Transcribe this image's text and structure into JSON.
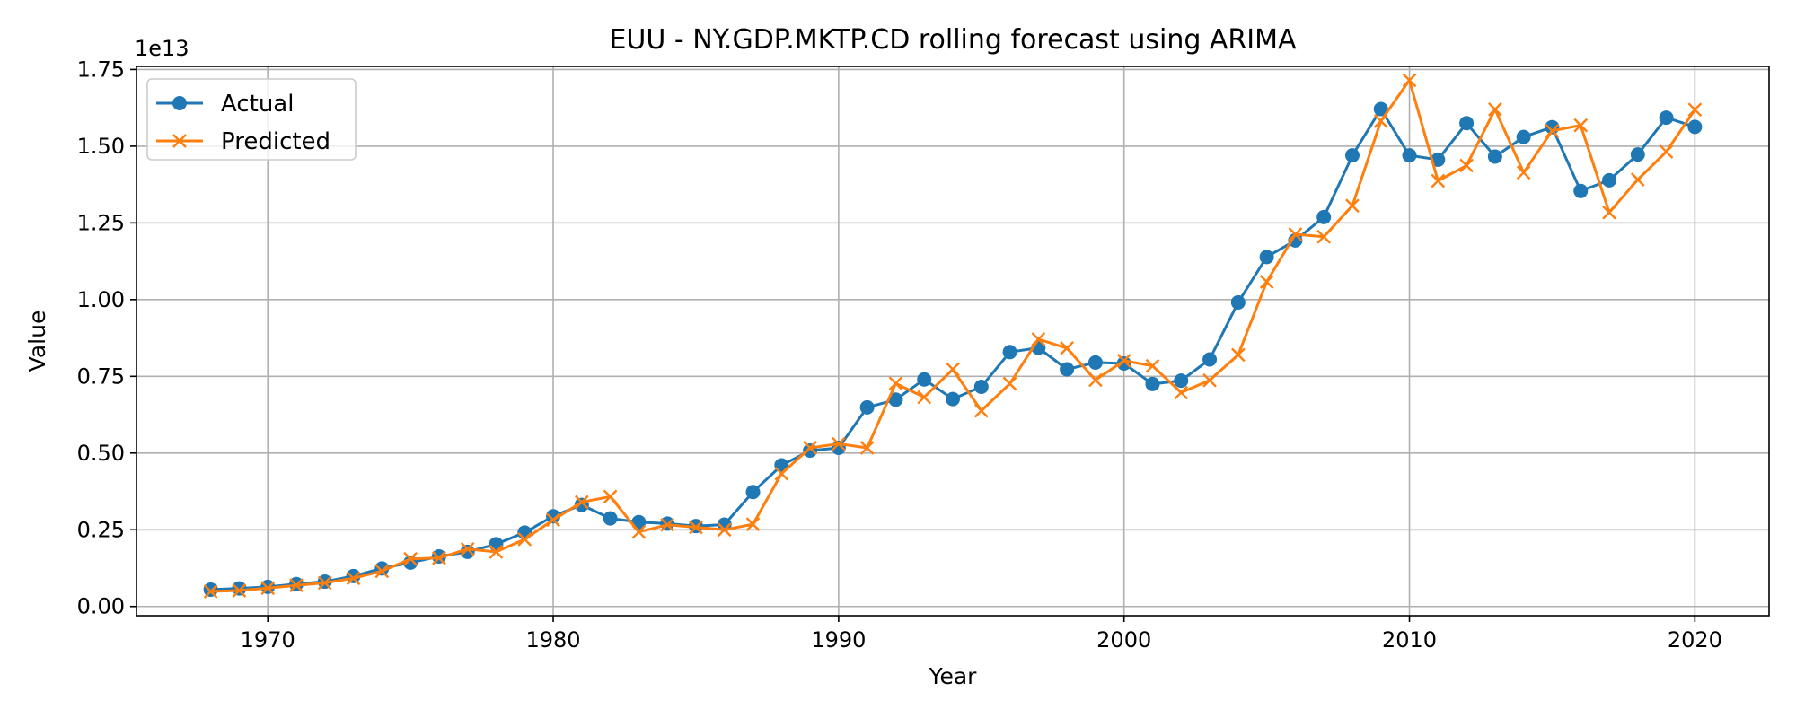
{
  "chart_data": {
    "type": "line",
    "title": "EUU - NY.GDP.MKTP.CD rolling forecast using ARIMA",
    "xlabel": "Year",
    "ylabel": "Value",
    "y_offset_label": "1e13",
    "xlim": [
      1965.4,
      2022.6
    ],
    "ylim": [
      -0.03,
      1.76
    ],
    "x_ticks": [
      1970,
      1980,
      1990,
      2000,
      2010,
      2020
    ],
    "y_ticks": [
      "0.00",
      "0.25",
      "0.50",
      "0.75",
      "1.00",
      "1.25",
      "1.50",
      "1.75"
    ],
    "y_scale": 10000000000000.0,
    "grid": true,
    "legend_position": "upper-left",
    "x": [
      1968,
      1969,
      1970,
      1971,
      1972,
      1973,
      1974,
      1975,
      1976,
      1977,
      1978,
      1979,
      1980,
      1981,
      1982,
      1983,
      1984,
      1985,
      1986,
      1987,
      1988,
      1989,
      1990,
      1991,
      1992,
      1993,
      1994,
      1995,
      1996,
      1997,
      1998,
      1999,
      2000,
      2001,
      2002,
      2003,
      2004,
      2005,
      2006,
      2007,
      2008,
      2009,
      2010,
      2011,
      2012,
      2013,
      2014,
      2015,
      2016,
      2017,
      2018,
      2019,
      2020
    ],
    "series": [
      {
        "name": "Actual",
        "color": "#1f77b4",
        "marker": "circle",
        "values": [
          0.055,
          0.059,
          0.064,
          0.073,
          0.081,
          0.099,
          0.124,
          0.143,
          0.163,
          0.178,
          0.203,
          0.241,
          0.294,
          0.331,
          0.287,
          0.275,
          0.27,
          0.262,
          0.267,
          0.373,
          0.46,
          0.508,
          0.517,
          0.649,
          0.674,
          0.74,
          0.676,
          0.716,
          0.829,
          0.843,
          0.773,
          0.795,
          0.792,
          0.725,
          0.736,
          0.805,
          0.991,
          1.139,
          1.193,
          1.269,
          1.47,
          1.621,
          1.47,
          1.456,
          1.575,
          1.466,
          1.53,
          1.562,
          1.354,
          1.389,
          1.473,
          1.593,
          1.563
        ]
      },
      {
        "name": "Predicted",
        "color": "#ff7f0e",
        "marker": "x",
        "values": [
          0.049,
          0.052,
          0.06,
          0.069,
          0.077,
          0.092,
          0.115,
          0.155,
          0.158,
          0.187,
          0.178,
          0.219,
          0.282,
          0.34,
          0.358,
          0.243,
          0.266,
          0.258,
          0.25,
          0.268,
          0.433,
          0.517,
          0.53,
          0.517,
          0.727,
          0.682,
          0.773,
          0.638,
          0.726,
          0.871,
          0.842,
          0.738,
          0.801,
          0.784,
          0.697,
          0.737,
          0.82,
          1.058,
          1.213,
          1.205,
          1.306,
          1.582,
          1.715,
          1.387,
          1.437,
          1.62,
          1.414,
          1.55,
          1.568,
          1.284,
          1.391,
          1.482,
          1.619
        ]
      }
    ]
  }
}
